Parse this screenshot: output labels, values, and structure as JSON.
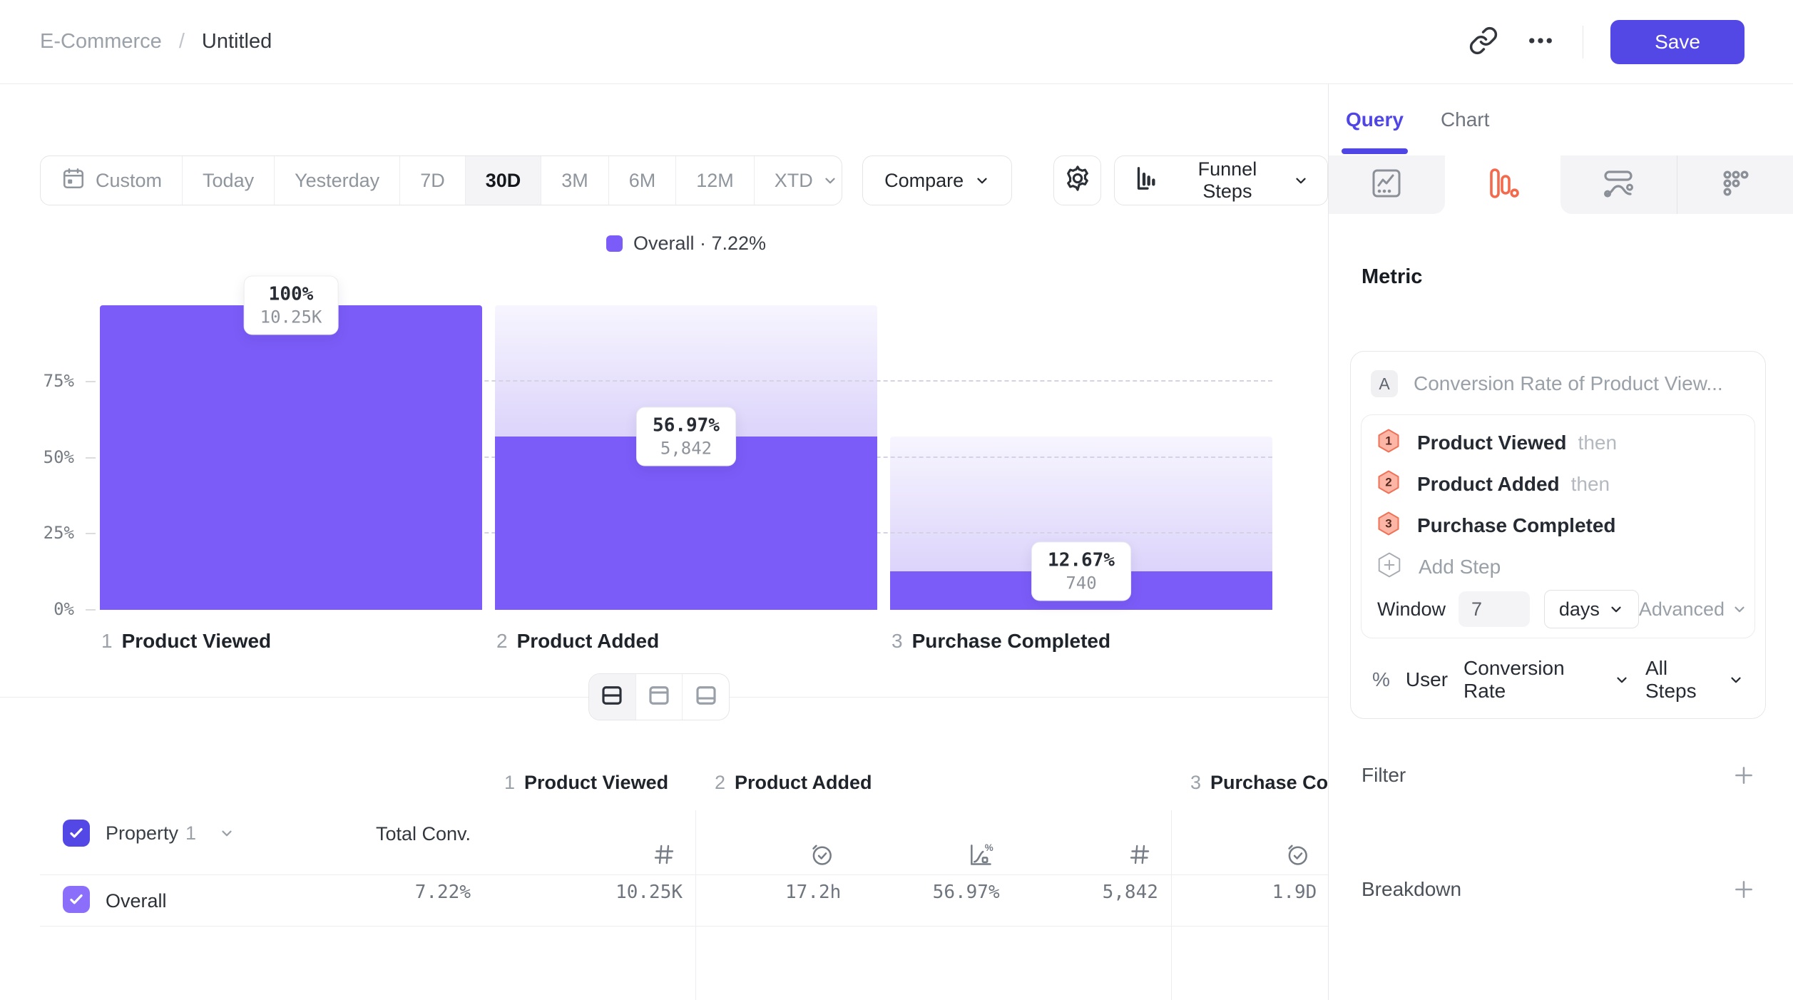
{
  "header": {
    "breadcrumb": {
      "section": "E-Commerce",
      "separator": "/",
      "page": "Untitled"
    },
    "save_label": "Save"
  },
  "toolbar": {
    "date_ranges": [
      "Custom",
      "Today",
      "Yesterday",
      "7D",
      "30D",
      "3M",
      "6M",
      "12M",
      "XTD"
    ],
    "selected_range": "30D",
    "compare_label": "Compare",
    "chart_selector_label": "Funnel Steps"
  },
  "legend": {
    "label": "Overall · 7.22%"
  },
  "chart_data": {
    "type": "bar",
    "subtype": "funnel-steps",
    "title": "",
    "categories": [
      "Product Viewed",
      "Product Added",
      "Purchase Completed"
    ],
    "step_numbers": [
      "1",
      "2",
      "3"
    ],
    "series": [
      {
        "name": "Overall",
        "overall_conversion": "7.22%",
        "conversion_pct": [
          100,
          56.97,
          12.67
        ],
        "pct_labels": [
          "100%",
          "56.97%",
          "12.67%"
        ],
        "count_labels": [
          "10.25K",
          "5,842",
          "740"
        ]
      }
    ],
    "yticks": [
      "0%",
      "25%",
      "50%",
      "75%"
    ],
    "ylim": [
      0,
      100
    ],
    "bar_color": "#7b5cf8",
    "legend_position": "top"
  },
  "view_toggle": {
    "options": [
      {
        "name": "split-view",
        "icon": "split-middle-icon",
        "selected": true
      },
      {
        "name": "top-panel-view",
        "icon": "split-top-icon",
        "selected": false
      },
      {
        "name": "bottom-panel-view",
        "icon": "split-bottom-icon",
        "selected": false
      }
    ]
  },
  "table": {
    "property_header": {
      "label": "Property",
      "index": "1"
    },
    "total_header": "Total Conv.",
    "groups": [
      {
        "number": "1",
        "title": "Product Viewed",
        "truncate": true,
        "columns": [
          {
            "icon": "hash-icon"
          }
        ]
      },
      {
        "number": "2",
        "title": "Product Added",
        "truncate": false,
        "columns": [
          {
            "icon": "time-check-icon"
          },
          {
            "icon": "conversion-chart-icon"
          },
          {
            "icon": "hash-icon"
          }
        ]
      },
      {
        "number": "3",
        "title": "Purchase Completed",
        "truncate": false,
        "columns": [
          {
            "icon": "time-check-icon"
          },
          {
            "icon": "conversion-chart-icon"
          }
        ]
      }
    ],
    "rows": [
      {
        "label": "Overall",
        "total": "7.22%",
        "checked": true,
        "values": [
          "10.25K",
          "17.2h",
          "56.97%",
          "5,842",
          "1.9D",
          ""
        ]
      }
    ]
  },
  "query_panel": {
    "tabs": [
      {
        "label": "Query",
        "active": true
      },
      {
        "label": "Chart",
        "active": false
      }
    ],
    "chart_type_tabs": [
      {
        "icon": "line-chart-icon",
        "active": false
      },
      {
        "icon": "funnel-bars-icon",
        "active": true
      },
      {
        "icon": "user-flow-icon",
        "active": false
      },
      {
        "icon": "retention-grid-icon",
        "active": false
      }
    ],
    "metric_heading": "Metric",
    "metric_card": {
      "badge": "A",
      "title": "Conversion Rate of Product View...",
      "steps": [
        {
          "number": "1",
          "label": "Product Viewed",
          "suffix": "then"
        },
        {
          "number": "2",
          "label": "Product Added",
          "suffix": "then"
        },
        {
          "number": "3",
          "label": "Purchase Completed",
          "suffix": ""
        }
      ],
      "add_step_label": "Add Step",
      "window": {
        "label": "Window",
        "value": "7",
        "unit": "days",
        "advanced_label": "Advanced"
      },
      "measurement": {
        "symbol": "%",
        "entity": "User",
        "metric": "Conversion Rate",
        "scope": "All Steps"
      }
    },
    "sections": [
      {
        "label": "Filter"
      },
      {
        "label": "Breakdown"
      }
    ]
  },
  "colors": {
    "accent_indigo": "#5347e6",
    "bar_purple": "#7b5cf8",
    "selected_tab_coral": "#f4694c",
    "header_checkbox": "#5347e6",
    "row_checkbox": "#8b6ffa",
    "step_badge_fill": "#fdb6a6",
    "step_badge_border": "#ef7257"
  }
}
